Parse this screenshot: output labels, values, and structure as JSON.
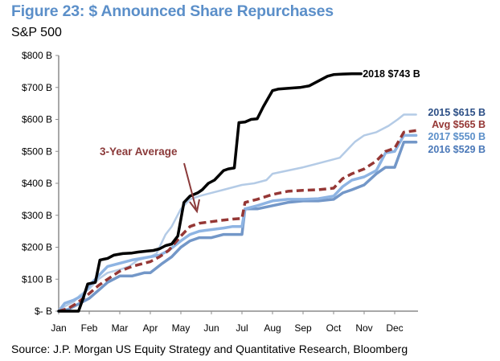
{
  "header": {
    "title": "Figure 23: $ Announced Share Repurchases",
    "subtitle": "S&P 500"
  },
  "footer": {
    "source": "Source: J.P. Morgan US Equity Strategy and Quantitative Research, Bloomberg"
  },
  "chart_data": {
    "type": "line",
    "title": "Figure 23: $ Announced Share Repurchases",
    "subtitle": "S&P 500",
    "xlabel": "",
    "ylabel": "",
    "x_unit": "month index (0 = Jan 1, 12 = Dec 31)",
    "xlim": [
      0,
      12
    ],
    "ylim": [
      0,
      800
    ],
    "y_ticks": [
      0,
      100,
      200,
      300,
      400,
      500,
      600,
      700,
      800
    ],
    "y_tick_labels": [
      "$- B",
      "$100 B",
      "$200 B",
      "$300 B",
      "$400 B",
      "$500 B",
      "$600 B",
      "$700 B",
      "$800 B"
    ],
    "x_ticks": [
      0,
      1,
      2,
      3,
      4,
      5,
      6,
      7,
      8,
      9,
      10,
      11
    ],
    "x_tick_labels": [
      "Jan",
      "Feb",
      "Mar",
      "Apr",
      "May",
      "Jun",
      "Jul",
      "Aug",
      "Sep",
      "Oct",
      "Nov",
      "Dec"
    ],
    "grid": false,
    "annotation": {
      "text": "3-Year Average",
      "points_to_series": "Avg",
      "at": [
        4.0,
        285
      ]
    },
    "series": [
      {
        "name": "2015",
        "end_label": "2015",
        "end_value": "$615 B",
        "color": "#b4cbe6",
        "label_color": "#2c4f86",
        "dashed": false,
        "width": 2.5,
        "x": [
          0,
          0.2,
          0.5,
          0.7,
          1.0,
          1.3,
          1.6,
          2.0,
          2.3,
          2.6,
          3.0,
          3.2,
          3.5,
          3.7,
          4.0,
          4.3,
          4.6,
          5.0,
          5.4,
          6.0,
          6.4,
          6.8,
          7.0,
          7.5,
          8.0,
          8.4,
          8.8,
          9.2,
          9.5,
          9.7,
          10.0,
          10.4,
          10.8,
          11.1,
          11.3,
          11.7
        ],
        "y": [
          0,
          15,
          30,
          50,
          70,
          100,
          120,
          130,
          140,
          160,
          170,
          180,
          240,
          265,
          320,
          350,
          360,
          370,
          380,
          395,
          400,
          410,
          430,
          440,
          450,
          460,
          470,
          480,
          510,
          530,
          550,
          560,
          580,
          600,
          615,
          615
        ]
      },
      {
        "name": "2016",
        "end_label": "2016",
        "end_value": "$529 B",
        "color": "#7397c8",
        "label_color": "#4a78b8",
        "dashed": false,
        "width": 3.5,
        "x": [
          0,
          0.3,
          0.6,
          1.0,
          1.3,
          1.6,
          2.0,
          2.4,
          2.8,
          3.0,
          3.4,
          3.7,
          4.0,
          4.3,
          4.6,
          5.0,
          5.4,
          5.7,
          6.0,
          6.1,
          6.5,
          7.0,
          7.5,
          8.0,
          8.5,
          9.0,
          9.3,
          9.6,
          10.0,
          10.4,
          10.7,
          11.0,
          11.3,
          11.7
        ],
        "y": [
          0,
          5,
          20,
          40,
          65,
          90,
          110,
          110,
          120,
          120,
          150,
          170,
          200,
          220,
          230,
          230,
          240,
          240,
          240,
          320,
          320,
          330,
          340,
          345,
          345,
          350,
          370,
          380,
          395,
          430,
          450,
          450,
          529,
          529
        ]
      },
      {
        "name": "2017",
        "end_label": "2017",
        "end_value": "$550 B",
        "color": "#8eb4e3",
        "label_color": "#5b8fc9",
        "dashed": false,
        "width": 3.5,
        "x": [
          0,
          0.2,
          0.5,
          0.8,
          1.0,
          1.3,
          1.6,
          2.0,
          2.4,
          2.7,
          3.0,
          3.3,
          3.6,
          4.0,
          4.3,
          4.6,
          5.0,
          5.4,
          5.7,
          6.0,
          6.1,
          6.5,
          7.0,
          7.5,
          8.0,
          8.5,
          9.0,
          9.3,
          9.6,
          10.0,
          10.4,
          10.7,
          11.0,
          11.3,
          11.7
        ],
        "y": [
          0,
          25,
          35,
          50,
          80,
          110,
          140,
          150,
          160,
          165,
          170,
          175,
          190,
          220,
          240,
          250,
          255,
          260,
          265,
          265,
          320,
          330,
          345,
          350,
          350,
          352,
          360,
          390,
          410,
          420,
          440,
          495,
          500,
          550,
          550
        ]
      },
      {
        "name": "Avg",
        "end_label": "Avg",
        "end_value": "$565 B",
        "color": "#953735",
        "label_color": "#953735",
        "dashed": true,
        "width": 3.5,
        "x": [
          0,
          0.3,
          0.6,
          1.0,
          1.3,
          1.6,
          2.0,
          2.4,
          2.8,
          3.0,
          3.3,
          3.6,
          4.0,
          4.3,
          4.6,
          5.0,
          5.4,
          5.7,
          6.0,
          6.1,
          6.5,
          7.0,
          7.5,
          8.0,
          8.5,
          9.0,
          9.3,
          9.6,
          10.0,
          10.4,
          10.7,
          11.0,
          11.3,
          11.7
        ],
        "y": [
          0,
          8,
          25,
          55,
          80,
          100,
          125,
          140,
          150,
          155,
          170,
          190,
          235,
          265,
          275,
          280,
          285,
          288,
          290,
          340,
          350,
          365,
          375,
          378,
          380,
          385,
          415,
          430,
          445,
          470,
          500,
          510,
          560,
          565
        ]
      },
      {
        "name": "2018",
        "end_label": "2018",
        "end_value": "$743 B",
        "color": "#000000",
        "label_color": "#000000",
        "dashed": false,
        "width": 3.5,
        "x": [
          0,
          0.3,
          0.65,
          0.8,
          0.95,
          1.2,
          1.35,
          1.6,
          1.8,
          2.1,
          2.4,
          2.6,
          2.9,
          3.1,
          3.3,
          3.5,
          3.7,
          3.9,
          4.1,
          4.3,
          4.55,
          4.7,
          4.9,
          5.1,
          5.4,
          5.55,
          5.75,
          5.9,
          6.1,
          6.3,
          6.5,
          6.7,
          7.0,
          7.2,
          7.5,
          7.9,
          8.2,
          8.5,
          8.8,
          9.0,
          9.3,
          9.6,
          9.9
        ],
        "y": [
          0,
          0,
          0,
          40,
          85,
          90,
          160,
          165,
          175,
          180,
          182,
          185,
          188,
          190,
          195,
          205,
          210,
          235,
          340,
          360,
          370,
          380,
          400,
          410,
          440,
          445,
          448,
          590,
          592,
          600,
          602,
          640,
          690,
          695,
          697,
          700,
          705,
          720,
          735,
          740,
          742,
          743,
          743
        ]
      }
    ]
  }
}
